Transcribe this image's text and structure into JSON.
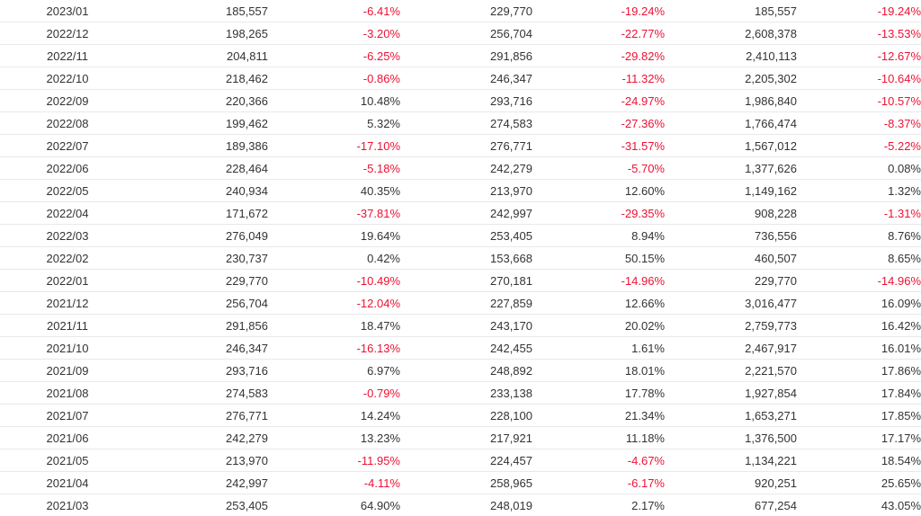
{
  "colors": {
    "text": "#333333",
    "negative": "#ee1133",
    "row_border": "#e9e9e9"
  },
  "rows": [
    [
      "2023/01",
      "185,557",
      "-6.41%",
      "229,770",
      "-19.24%",
      "185,557",
      "-19.24%"
    ],
    [
      "2022/12",
      "198,265",
      "-3.20%",
      "256,704",
      "-22.77%",
      "2,608,378",
      "-13.53%"
    ],
    [
      "2022/11",
      "204,811",
      "-6.25%",
      "291,856",
      "-29.82%",
      "2,410,113",
      "-12.67%"
    ],
    [
      "2022/10",
      "218,462",
      "-0.86%",
      "246,347",
      "-11.32%",
      "2,205,302",
      "-10.64%"
    ],
    [
      "2022/09",
      "220,366",
      "10.48%",
      "293,716",
      "-24.97%",
      "1,986,840",
      "-10.57%"
    ],
    [
      "2022/08",
      "199,462",
      "5.32%",
      "274,583",
      "-27.36%",
      "1,766,474",
      "-8.37%"
    ],
    [
      "2022/07",
      "189,386",
      "-17.10%",
      "276,771",
      "-31.57%",
      "1,567,012",
      "-5.22%"
    ],
    [
      "2022/06",
      "228,464",
      "-5.18%",
      "242,279",
      "-5.70%",
      "1,377,626",
      "0.08%"
    ],
    [
      "2022/05",
      "240,934",
      "40.35%",
      "213,970",
      "12.60%",
      "1,149,162",
      "1.32%"
    ],
    [
      "2022/04",
      "171,672",
      "-37.81%",
      "242,997",
      "-29.35%",
      "908,228",
      "-1.31%"
    ],
    [
      "2022/03",
      "276,049",
      "19.64%",
      "253,405",
      "8.94%",
      "736,556",
      "8.76%"
    ],
    [
      "2022/02",
      "230,737",
      "0.42%",
      "153,668",
      "50.15%",
      "460,507",
      "8.65%"
    ],
    [
      "2022/01",
      "229,770",
      "-10.49%",
      "270,181",
      "-14.96%",
      "229,770",
      "-14.96%"
    ],
    [
      "2021/12",
      "256,704",
      "-12.04%",
      "227,859",
      "12.66%",
      "3,016,477",
      "16.09%"
    ],
    [
      "2021/11",
      "291,856",
      "18.47%",
      "243,170",
      "20.02%",
      "2,759,773",
      "16.42%"
    ],
    [
      "2021/10",
      "246,347",
      "-16.13%",
      "242,455",
      "1.61%",
      "2,467,917",
      "16.01%"
    ],
    [
      "2021/09",
      "293,716",
      "6.97%",
      "248,892",
      "18.01%",
      "2,221,570",
      "17.86%"
    ],
    [
      "2021/08",
      "274,583",
      "-0.79%",
      "233,138",
      "17.78%",
      "1,927,854",
      "17.84%"
    ],
    [
      "2021/07",
      "276,771",
      "14.24%",
      "228,100",
      "21.34%",
      "1,653,271",
      "17.85%"
    ],
    [
      "2021/06",
      "242,279",
      "13.23%",
      "217,921",
      "11.18%",
      "1,376,500",
      "17.17%"
    ],
    [
      "2021/05",
      "213,970",
      "-11.95%",
      "224,457",
      "-4.67%",
      "1,134,221",
      "18.54%"
    ],
    [
      "2021/04",
      "242,997",
      "-4.11%",
      "258,965",
      "-6.17%",
      "920,251",
      "25.65%"
    ],
    [
      "2021/03",
      "253,405",
      "64.90%",
      "248,019",
      "2.17%",
      "677,254",
      "43.05%"
    ]
  ]
}
